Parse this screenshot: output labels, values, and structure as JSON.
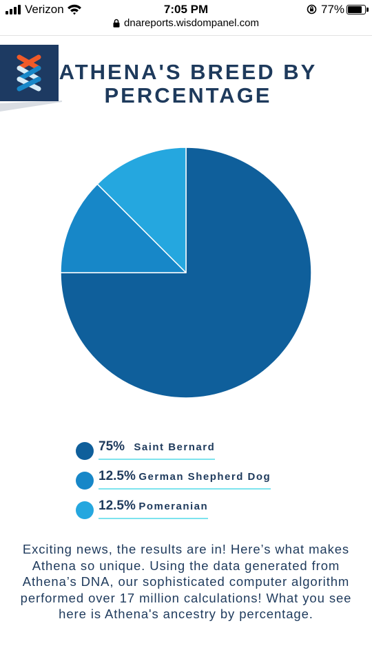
{
  "status_bar": {
    "carrier": "Verizon",
    "time": "7:05 PM",
    "battery": "77%",
    "battery_level": 0.77
  },
  "browser": {
    "url": "dnareports.wisdompanel.com"
  },
  "header": {
    "title": "ATHENA'S BREED BY PERCENTAGE"
  },
  "colors": {
    "primary": "#1e3a5c",
    "logo_bg": "#1d3a62",
    "underline": "#7de3ee",
    "logo_orange": "#f05a28",
    "logo_light": "#d7ecf7"
  },
  "chart_data": {
    "type": "pie",
    "start": "12 o'clock, clockwise",
    "slices": [
      {
        "name": "Saint Bernard",
        "label": "75%",
        "value": 75,
        "color": "#0f5f9b"
      },
      {
        "name": "German Shepherd Dog",
        "label": "12.5%",
        "value": 12.5,
        "color": "#1787c8"
      },
      {
        "name": "Pomeranian",
        "label": "12.5%",
        "value": 12.5,
        "color": "#25a7df"
      }
    ]
  },
  "description": "Exciting news, the results are in! Here’s what makes Athena so unique. Using the data generated from Athena’s DNA, our sophisticated computer algorithm performed over 17 million calculations! What you see here is Athena's ancestry by percentage."
}
